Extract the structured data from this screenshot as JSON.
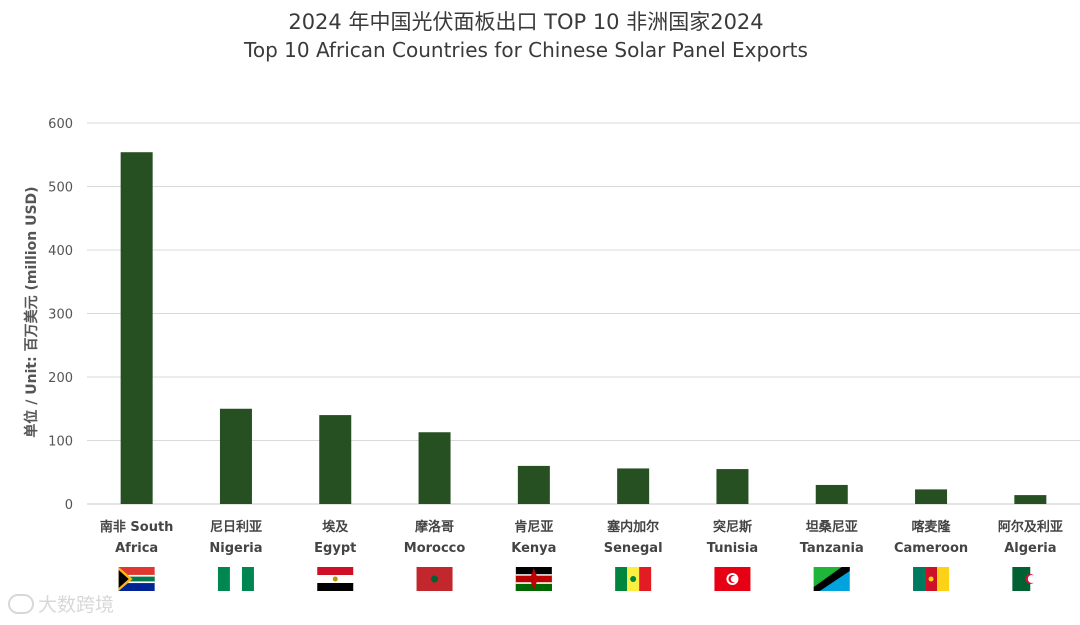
{
  "title_zh": "2024 年中国光伏面板出口 TOP 10 非洲国家2024",
  "title_en": "Top 10 African Countries for Chinese Solar Panel Exports",
  "watermark": "大数跨境",
  "chart_data": {
    "type": "bar",
    "title": "2024 年中国光伏面板出口 TOP 10 非洲国家2024 / Top 10 African Countries for Chinese Solar Panel Exports",
    "ylabel": "单位 / Unit: 百万美元 (million USD)",
    "xlabel": "",
    "ylim": [
      0,
      600
    ],
    "yticks": [
      0,
      100,
      200,
      300,
      400,
      500,
      600
    ],
    "grid": true,
    "bar_color": "#264f22",
    "categories": [
      {
        "zh": "南非 South",
        "en": "Africa",
        "flag": "south-africa"
      },
      {
        "zh": "尼日利亚",
        "en": "Nigeria",
        "flag": "nigeria"
      },
      {
        "zh": "埃及",
        "en": "Egypt",
        "flag": "egypt"
      },
      {
        "zh": "摩洛哥",
        "en": "Morocco",
        "flag": "morocco"
      },
      {
        "zh": "肯尼亚",
        "en": "Kenya",
        "flag": "kenya"
      },
      {
        "zh": "塞内加尔",
        "en": "Senegal",
        "flag": "senegal"
      },
      {
        "zh": "突尼斯",
        "en": "Tunisia",
        "flag": "tunisia"
      },
      {
        "zh": "坦桑尼亚",
        "en": "Tanzania",
        "flag": "tanzania"
      },
      {
        "zh": "喀麦隆",
        "en": "Cameroon",
        "flag": "cameroon"
      },
      {
        "zh": "阿尔及利亚",
        "en": "Algeria",
        "flag": "algeria"
      }
    ],
    "values": [
      554,
      150,
      140,
      113,
      60,
      56,
      55,
      30,
      23,
      14
    ]
  }
}
